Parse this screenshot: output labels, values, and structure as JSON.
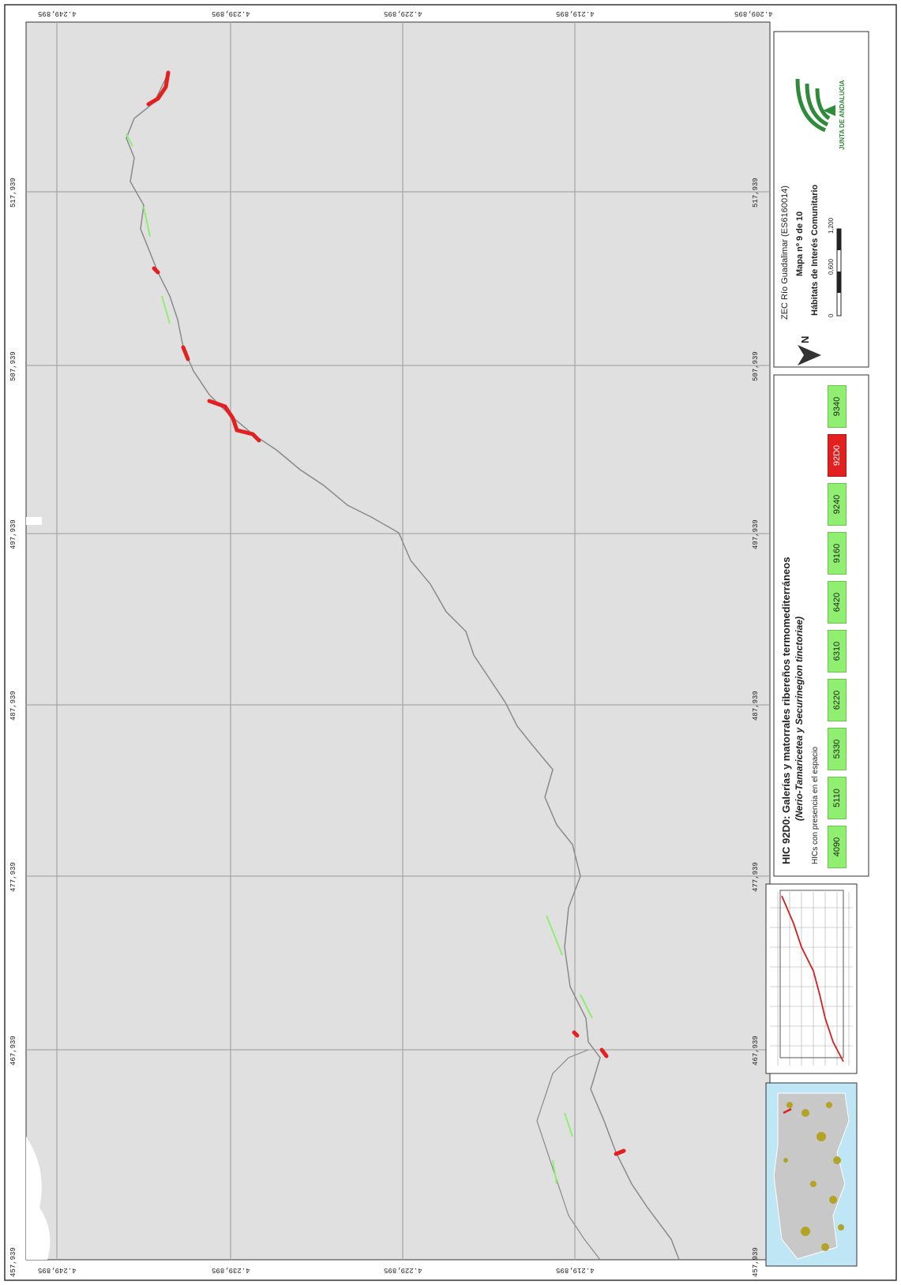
{
  "header": {
    "zec_name": "ZEC Río Guadalimar (ES6160014)",
    "map_number": "Mapa nº 9 de 10",
    "map_theme": "Hábitats de Interés Comunitario",
    "north_label": "N",
    "scale_labels": [
      "0",
      "0,600",
      "1,200"
    ],
    "organization": "JUNTA DE ANDALUCIA"
  },
  "legend": {
    "title": "HIC 92D0: Galerías y matorrales ribereños termomediterráneos",
    "subtitle": "(Nerio-Tamaricetea y Securinegion tinctoriae)",
    "presence_label": "HICs con presencia en el espacio",
    "codes": [
      "4090",
      "5110",
      "5330",
      "6220",
      "6310",
      "6420",
      "9160",
      "9240",
      "92D0",
      "9340"
    ],
    "active_code": "92D0",
    "colors": {
      "active": "#e32020",
      "present": "#90ee70",
      "river": "#8a8a8a",
      "background": "#e0e0e0"
    }
  },
  "coordinates": {
    "top": [
      "4.249,895",
      "4.239,895",
      "4.229,895",
      "4.219,895",
      "4.209,895"
    ],
    "bottom": [
      "4.249,895",
      "4.239,895",
      "4.229,895",
      "4.219,895"
    ],
    "sides": [
      "517,939",
      "507,939",
      "497,939",
      "487,939",
      "477,939",
      "467,939",
      "457,939"
    ]
  }
}
